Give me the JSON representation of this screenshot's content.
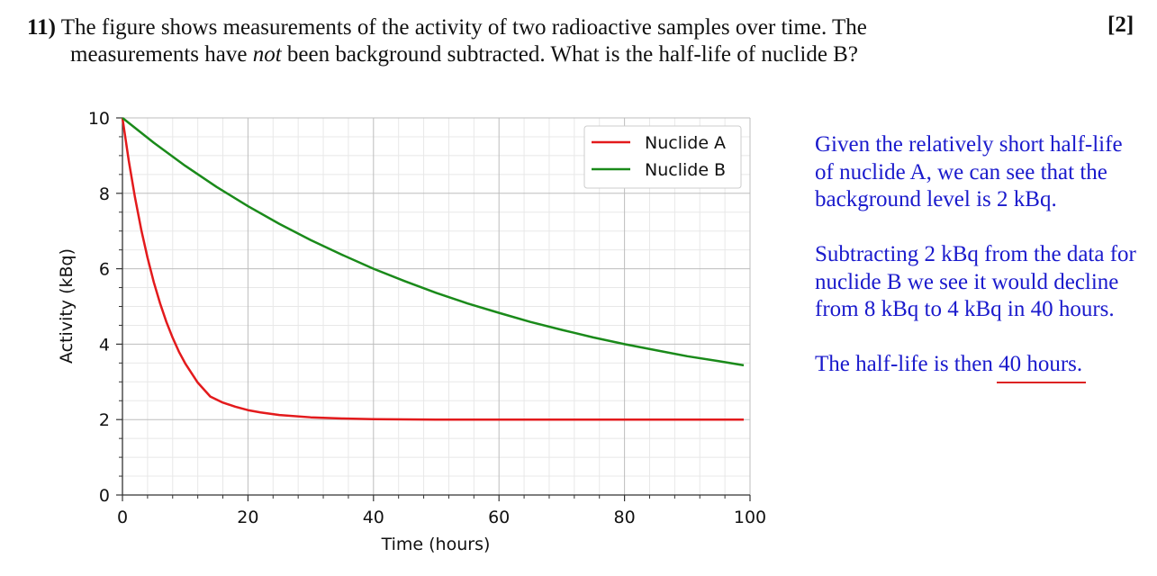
{
  "question": {
    "number": "11)",
    "text_line1": "The figure shows measurements of the activity of two radioactive samples over time. The",
    "text_line2_pre": "measurements have ",
    "text_line2_em": "not",
    "text_line2_post": " been background subtracted. What is the half-life of nuclide B?",
    "marks": "[2]"
  },
  "answer": {
    "para1": "Given the relatively short half-life of nuclide A, we can see that the background level is 2 kBq.",
    "para2": "Subtracting 2 kBq from the data for nuclide B we see it would decline from 8 kBq to 4 kBq in 40 hours.",
    "para3_pre": "The half-life is then ",
    "para3_answer": "40 hours.",
    "answer_text_color": "#1a1acc",
    "underline_color": "#dd2222"
  },
  "chart_data": {
    "type": "line",
    "xlabel": "Time (hours)",
    "ylabel": "Activity (kBq)",
    "xlim": [
      0,
      100
    ],
    "ylim": [
      0,
      10
    ],
    "x_ticks": [
      "0",
      "20",
      "40",
      "60",
      "80",
      "100"
    ],
    "y_ticks": [
      "0",
      "2",
      "4",
      "6",
      "8",
      "10"
    ],
    "grid": true,
    "legend_position": "top-right",
    "series": [
      {
        "name": "Nuclide A",
        "color": "#e31a1c",
        "x": [
          0,
          1,
          2,
          3,
          4,
          5,
          6,
          7,
          8,
          9,
          10,
          12,
          14,
          16,
          18,
          20,
          22,
          25,
          30,
          35,
          40,
          45,
          50,
          60,
          70,
          80,
          90,
          99
        ],
        "y": [
          10,
          8.87,
          7.89,
          7.03,
          6.29,
          5.64,
          5.08,
          4.59,
          4.17,
          3.8,
          3.49,
          2.98,
          2.61,
          2.45,
          2.34,
          2.25,
          2.19,
          2.12,
          2.06,
          2.03,
          2.01,
          2.005,
          2.0,
          2.0,
          2.0,
          2.0,
          2.0,
          2.0
        ]
      },
      {
        "name": "Nuclide B",
        "color": "#1a8a1a",
        "x": [
          0,
          5,
          10,
          15,
          20,
          25,
          30,
          35,
          40,
          45,
          50,
          55,
          60,
          65,
          70,
          75,
          80,
          85,
          90,
          95,
          99
        ],
        "y": [
          10,
          9.34,
          8.73,
          8.17,
          7.66,
          7.19,
          6.76,
          6.37,
          6.0,
          5.67,
          5.36,
          5.08,
          4.83,
          4.59,
          4.38,
          4.18,
          4.0,
          3.84,
          3.68,
          3.55,
          3.44
        ]
      }
    ]
  }
}
